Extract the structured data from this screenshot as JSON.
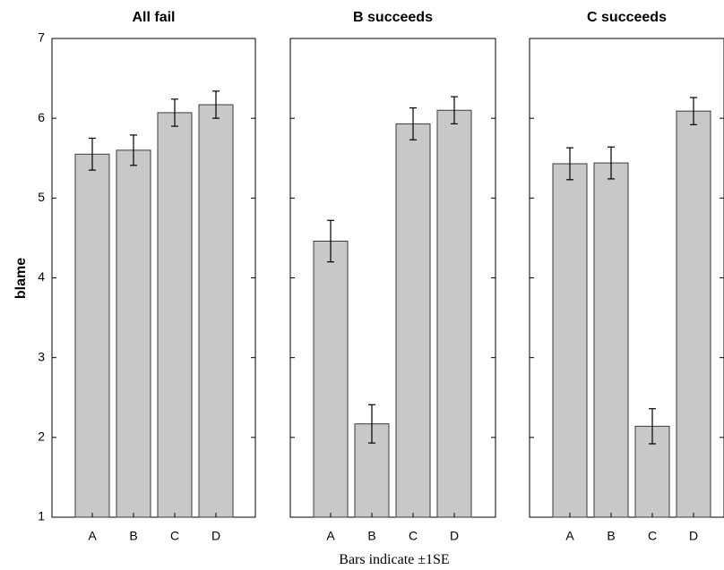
{
  "chart_data": [
    {
      "type": "bar",
      "title": "All fail",
      "categories": [
        "A",
        "B",
        "C",
        "D"
      ],
      "values": [
        5.55,
        5.6,
        6.07,
        6.17
      ],
      "error": [
        0.2,
        0.19,
        0.17,
        0.17
      ],
      "ylabel": "blame",
      "ylim": [
        1,
        7
      ],
      "yticks": [
        1,
        2,
        3,
        4,
        5,
        6,
        7
      ],
      "bar_color": "#c8c8cb"
    },
    {
      "type": "bar",
      "title": "B succeeds",
      "categories": [
        "A",
        "B",
        "C",
        "D"
      ],
      "values": [
        4.46,
        2.17,
        5.93,
        6.1
      ],
      "error": [
        0.26,
        0.24,
        0.2,
        0.17
      ],
      "ylim": [
        1,
        7
      ],
      "bar_color": "#c8c8cb"
    },
    {
      "type": "bar",
      "title": "C succeeds",
      "categories": [
        "A",
        "B",
        "C",
        "D"
      ],
      "values": [
        5.43,
        5.44,
        2.14,
        6.09
      ],
      "error": [
        0.2,
        0.2,
        0.22,
        0.17
      ],
      "ylim": [
        1,
        7
      ],
      "bar_color": "#c8c8cb"
    }
  ],
  "footnote": "Bars indicate ±1SE"
}
